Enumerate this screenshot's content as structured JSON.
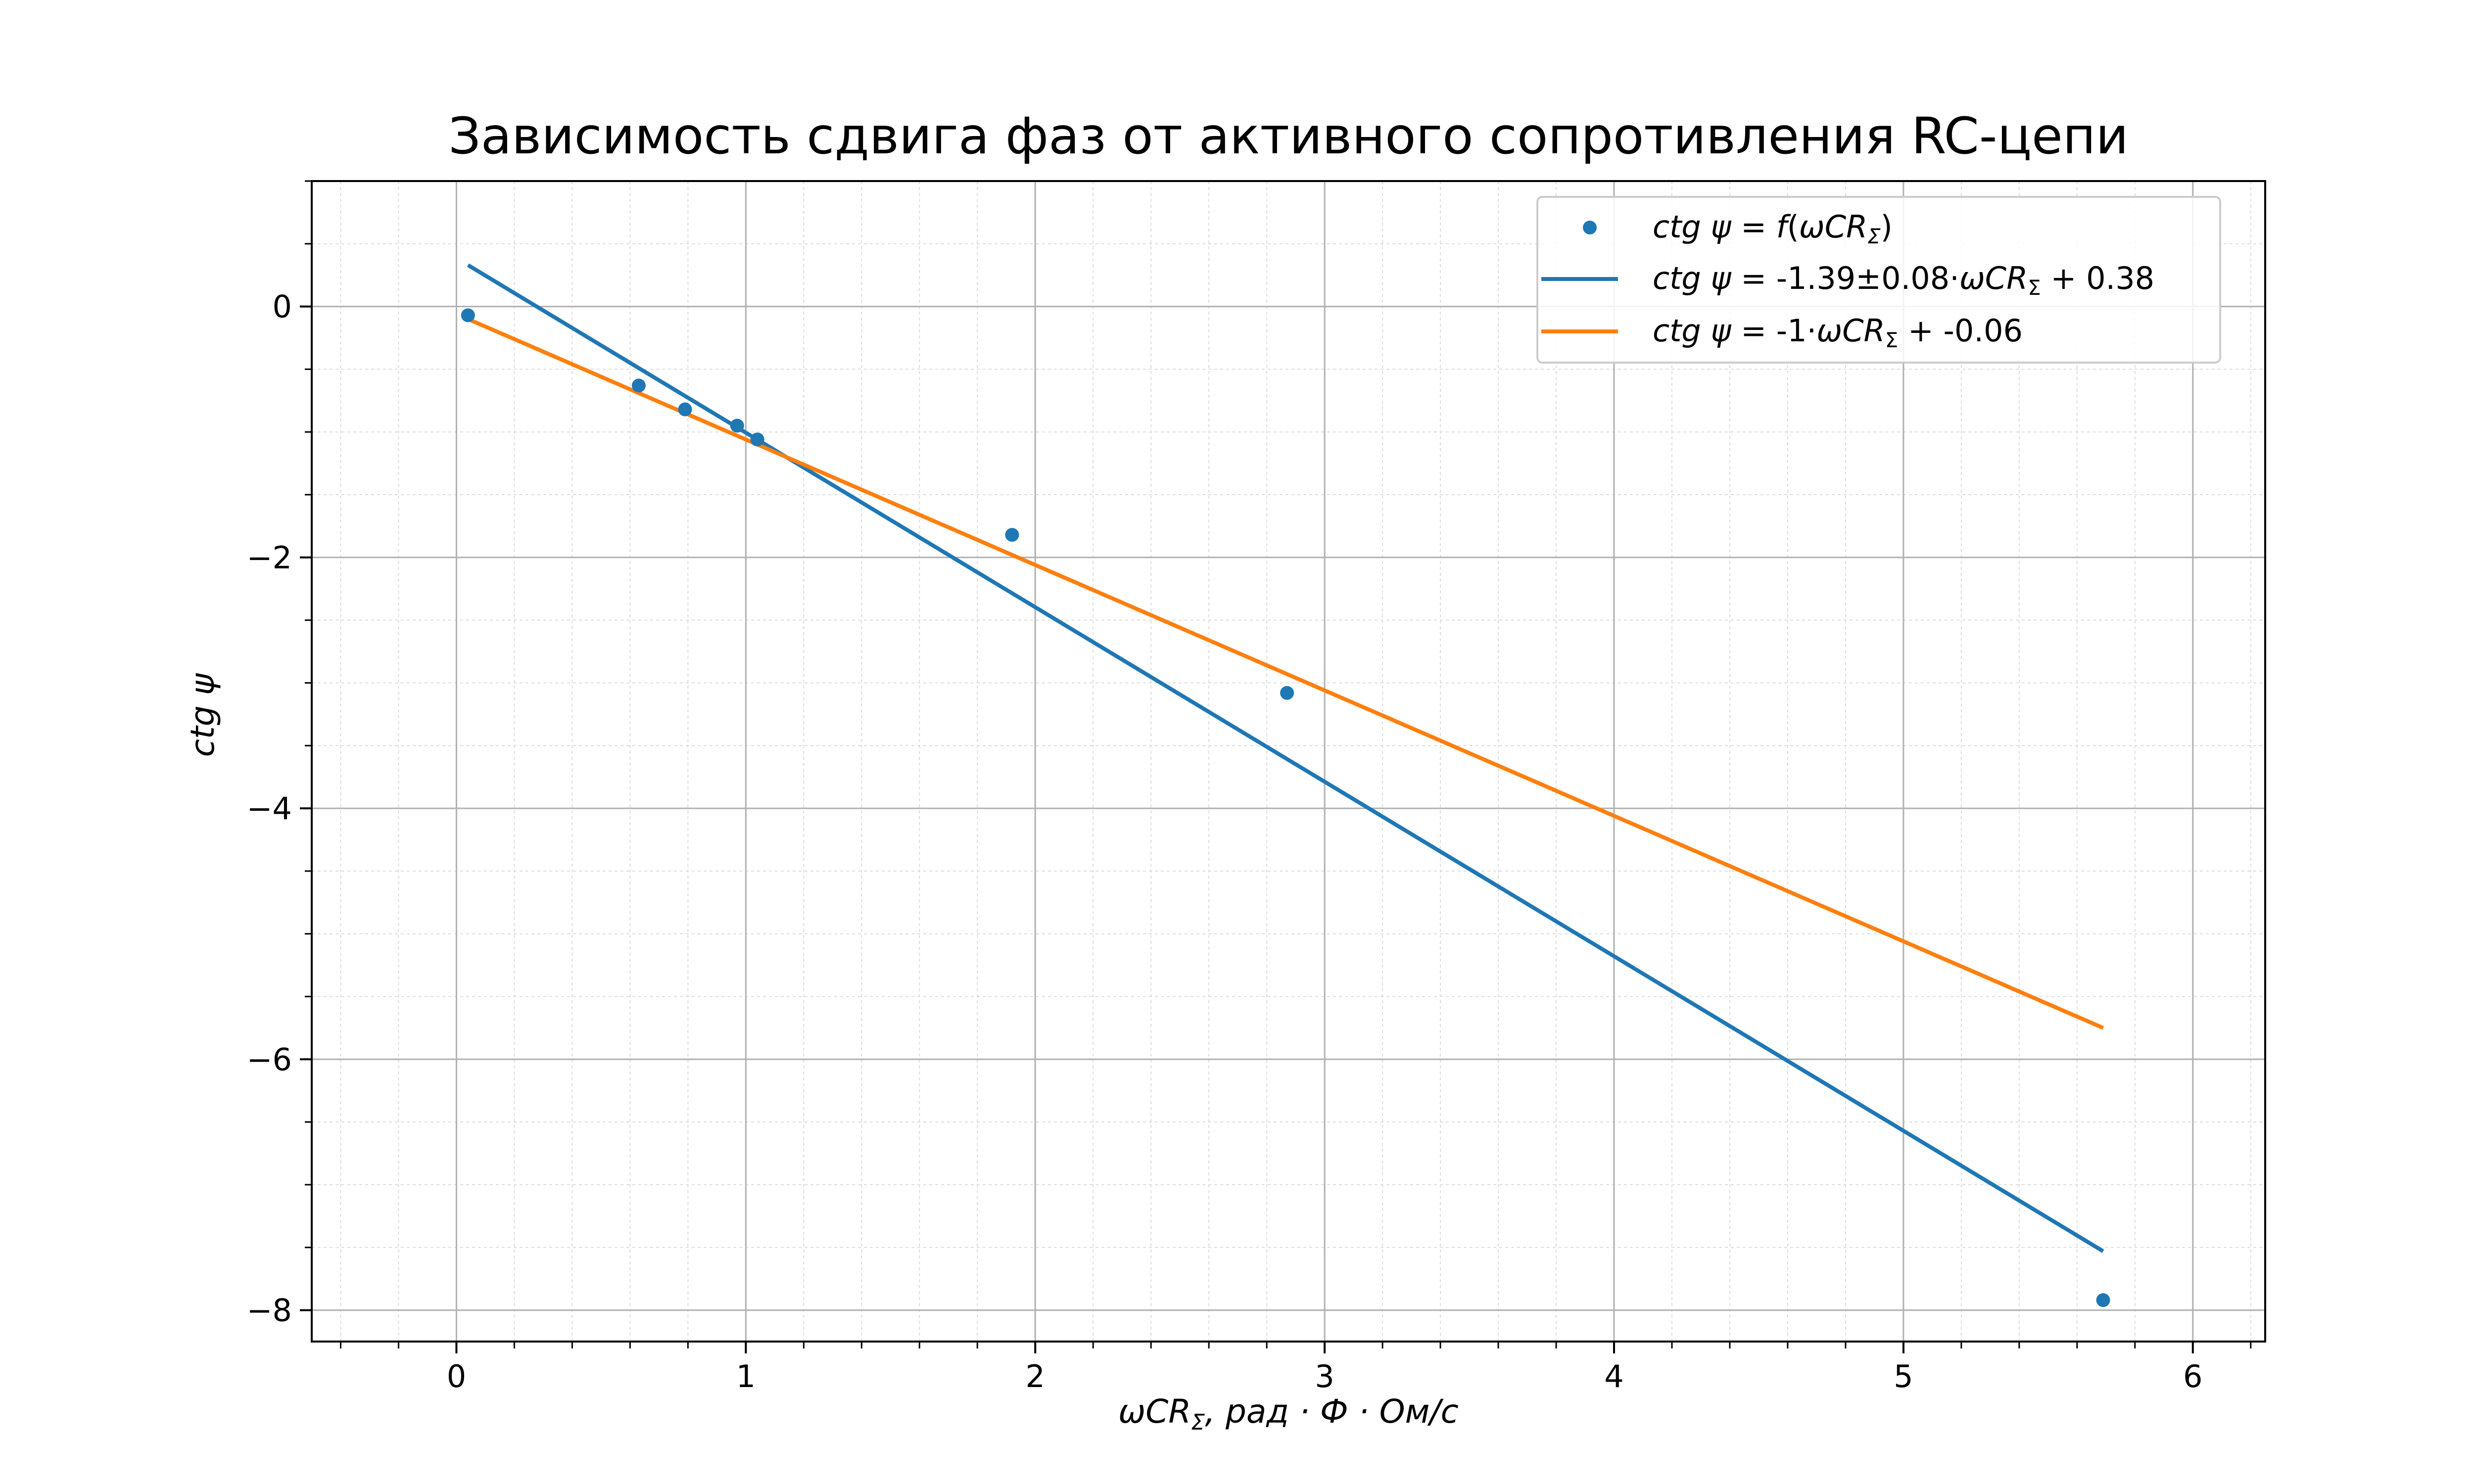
{
  "chart_data": {
    "type": "scatter",
    "title": "Зависимость сдвига фаз от активного сопротивления RC-цепи",
    "xlabel": "ωCRΣ, рад · Ф · Ом/с",
    "ylabel": "ctg ψ",
    "xlim": [
      -0.5,
      6.25
    ],
    "ylim": [
      -8.25,
      1.0
    ],
    "x_ticks": [
      0,
      1,
      2,
      3,
      4,
      5,
      6
    ],
    "y_ticks": [
      0,
      -2,
      -4,
      -6,
      -8
    ],
    "x_tick_labels": [
      "0",
      "1",
      "2",
      "3",
      "4",
      "5",
      "6"
    ],
    "y_tick_labels": [
      "0",
      "−2",
      "−4",
      "−6",
      "−8"
    ],
    "x_minor_step": 0.2,
    "y_minor_step": 0.5,
    "grid": true,
    "legend_position": "top-right",
    "series": [
      {
        "name": "ctg ψ = f(ωCRΣ)",
        "kind": "scatter",
        "color": "#1f77b4",
        "points": [
          [
            0.04,
            -0.07
          ],
          [
            0.63,
            -0.63
          ],
          [
            0.79,
            -0.82
          ],
          [
            0.97,
            -0.95
          ],
          [
            1.04,
            -1.06
          ],
          [
            1.92,
            -1.82
          ],
          [
            2.87,
            -3.08
          ],
          [
            5.69,
            -7.92
          ]
        ]
      },
      {
        "name": "ctg ψ = -1.39±0.08·ωCRΣ  + 0.38",
        "kind": "line",
        "color": "#1f77b4",
        "points": [
          [
            0.04,
            0.33
          ],
          [
            5.69,
            -7.53
          ]
        ]
      },
      {
        "name": "ctg ψ = -1·ωCRΣ  + -0.06",
        "kind": "line",
        "color": "#ff7f0e",
        "points": [
          [
            0.04,
            -0.1
          ],
          [
            5.69,
            -5.75
          ]
        ]
      }
    ]
  }
}
